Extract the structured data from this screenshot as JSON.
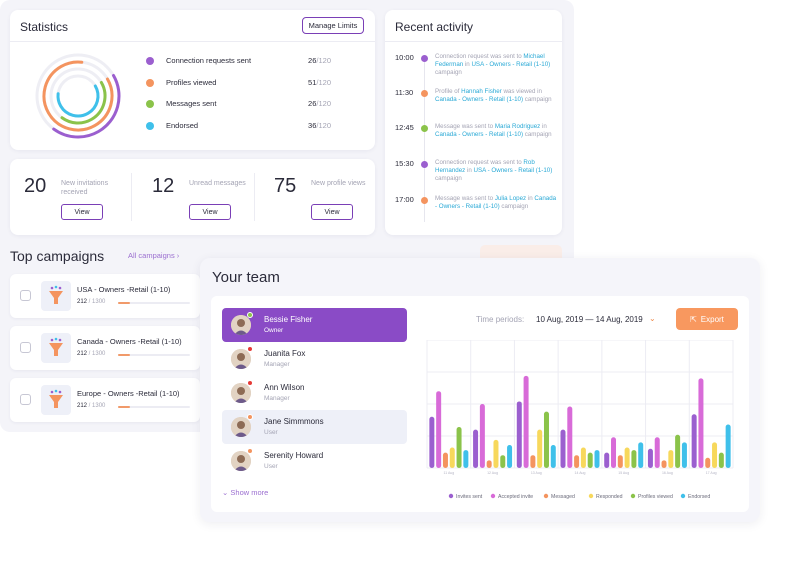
{
  "statistics": {
    "title": "Statistics",
    "manage_label": "Manage Limits",
    "items": [
      {
        "label": "Connection requests sent",
        "value": "26",
        "total": "/120",
        "color": "#9b5fcf"
      },
      {
        "label": "Profiles viewed",
        "value": "51",
        "total": "/120",
        "color": "#f4945f"
      },
      {
        "label": "Messages sent",
        "value": "26",
        "total": "/120",
        "color": "#8bc34a"
      },
      {
        "label": "Endorsed",
        "value": "36",
        "total": "/120",
        "color": "#3fc0ea"
      }
    ]
  },
  "counters": [
    {
      "num": "20",
      "label": "New invitations received",
      "button": "View"
    },
    {
      "num": "12",
      "label": "Unread messages",
      "button": "View"
    },
    {
      "num": "75",
      "label": "New profile views",
      "button": "View"
    }
  ],
  "activity": {
    "title": "Recent activity",
    "items": [
      {
        "time": "10:00",
        "color": "#9b5fcf",
        "parts": [
          {
            "t": "Connection request was sent to "
          },
          {
            "t": "Michael Federman",
            "h": true
          },
          {
            "t": " in "
          },
          {
            "t": "USA - Owners - Retail (1-10)",
            "h": true
          },
          {
            "t": " campaign"
          }
        ]
      },
      {
        "time": "11:30",
        "color": "#f4945f",
        "parts": [
          {
            "t": "Profile of "
          },
          {
            "t": "Hannah Fisher",
            "h": true
          },
          {
            "t": " was viewed in "
          },
          {
            "t": "Canada - Owners - Retail (1-10)",
            "h": true
          },
          {
            "t": " campaign"
          }
        ]
      },
      {
        "time": "12:45",
        "color": "#8bc34a",
        "parts": [
          {
            "t": "Message was sent to "
          },
          {
            "t": "Maria Rodriguez",
            "h": true
          },
          {
            "t": " in "
          },
          {
            "t": "Canada - Owners - Retail (1-10)",
            "h": true
          },
          {
            "t": " campaign"
          }
        ]
      },
      {
        "time": "15:30",
        "color": "#9b5fcf",
        "parts": [
          {
            "t": "Connection request was sent to "
          },
          {
            "t": "Rob Hernandez",
            "h": true
          },
          {
            "t": " in "
          },
          {
            "t": "USA - Owners - Retail (1-10)",
            "h": true
          },
          {
            "t": " campaign"
          }
        ]
      },
      {
        "time": "17:00",
        "color": "#f4945f",
        "parts": [
          {
            "t": "Message was sent to "
          },
          {
            "t": "Julia Lopez",
            "h": true
          },
          {
            "t": " in "
          },
          {
            "t": "Canada - Owners - Retail (1-10)",
            "h": true
          },
          {
            "t": " campaign"
          }
        ]
      }
    ]
  },
  "campaigns": {
    "title": "Top campaigns",
    "all_label": "All campaigns",
    "items": [
      {
        "name": "USA - Owners -Retail (1-10)",
        "done": "212",
        "total": " / 1300"
      },
      {
        "name": "Canada - Owners -Retail (1-10)",
        "done": "212",
        "total": " / 1300"
      },
      {
        "name": "Europe - Owners -Retail (1-10)",
        "done": "212",
        "total": " / 1300"
      }
    ]
  },
  "team": {
    "title": "Your team",
    "members": [
      {
        "name": "Bessie Fisher",
        "role": "Owner",
        "status": "#8bc34a"
      },
      {
        "name": "Juanita Fox",
        "role": "Manager",
        "status": "#e53935"
      },
      {
        "name": "Ann Wilson",
        "role": "Manager",
        "status": "#e53935"
      },
      {
        "name": "Jane Simmmons",
        "role": "User",
        "status": "#f4945f"
      },
      {
        "name": "Serenity Howard",
        "role": "User",
        "status": "#f4945f"
      }
    ],
    "show_more": "Show more",
    "time_label": "Time periods:",
    "time_value": "10 Aug, 2019 — 14 Aug, 2019",
    "export_label": "Export"
  },
  "chart_data": {
    "type": "bar",
    "ylim": [
      0,
      100
    ],
    "grid": true,
    "legend_position": "bottom",
    "categories": [
      "11 Aug",
      "12 Aug",
      "13 Aug",
      "14 Aug",
      "15 Aug",
      "16 Aug",
      "17 Aug"
    ],
    "series": [
      {
        "name": "Invites sent",
        "color": "#9b5fcf",
        "values": [
          40,
          30,
          52,
          30,
          12,
          15,
          42
        ]
      },
      {
        "name": "Accepted invite",
        "color": "#d86bd8",
        "values": [
          60,
          50,
          72,
          48,
          24,
          24,
          70
        ]
      },
      {
        "name": "Messaged",
        "color": "#f4945f",
        "values": [
          12,
          6,
          10,
          10,
          10,
          6,
          8
        ]
      },
      {
        "name": "Responded",
        "color": "#f7d85c",
        "values": [
          16,
          22,
          30,
          16,
          16,
          14,
          20
        ]
      },
      {
        "name": "Profiles viewed",
        "color": "#8bc34a",
        "values": [
          32,
          10,
          44,
          12,
          14,
          26,
          12
        ]
      },
      {
        "name": "Endorsed",
        "color": "#3fc0ea",
        "values": [
          14,
          18,
          18,
          14,
          20,
          20,
          34
        ]
      }
    ]
  }
}
